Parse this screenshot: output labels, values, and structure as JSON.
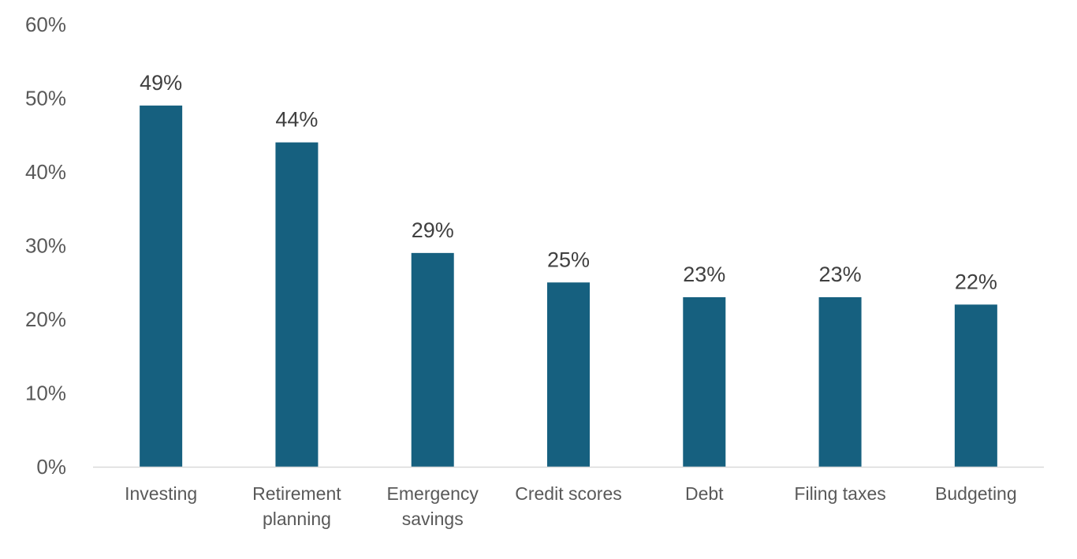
{
  "chart_data": {
    "type": "bar",
    "categories": [
      [
        "Investing"
      ],
      [
        "Retirement",
        "planning"
      ],
      [
        "Emergency",
        "savings"
      ],
      [
        "Credit scores"
      ],
      [
        "Debt"
      ],
      [
        "Filing taxes"
      ],
      [
        "Budgeting"
      ]
    ],
    "values": [
      49,
      44,
      29,
      25,
      23,
      23,
      22
    ],
    "data_labels": [
      "49%",
      "44%",
      "29%",
      "25%",
      "23%",
      "23%",
      "22%"
    ],
    "y_ticks": [
      "0%",
      "10%",
      "20%",
      "30%",
      "40%",
      "50%",
      "60%"
    ],
    "ylim": [
      0,
      60
    ],
    "grid": false,
    "legend": "none",
    "bar_color": "#16607F",
    "axis_color": "#D9D9D9",
    "text_color": "#595959",
    "label_color": "#404040"
  }
}
